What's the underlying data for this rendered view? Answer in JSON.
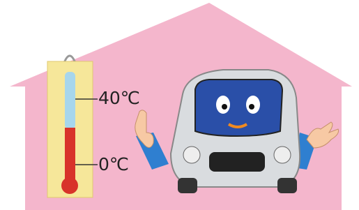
{
  "thermometer": {
    "labels": [
      "40℃",
      "0℃"
    ]
  }
}
